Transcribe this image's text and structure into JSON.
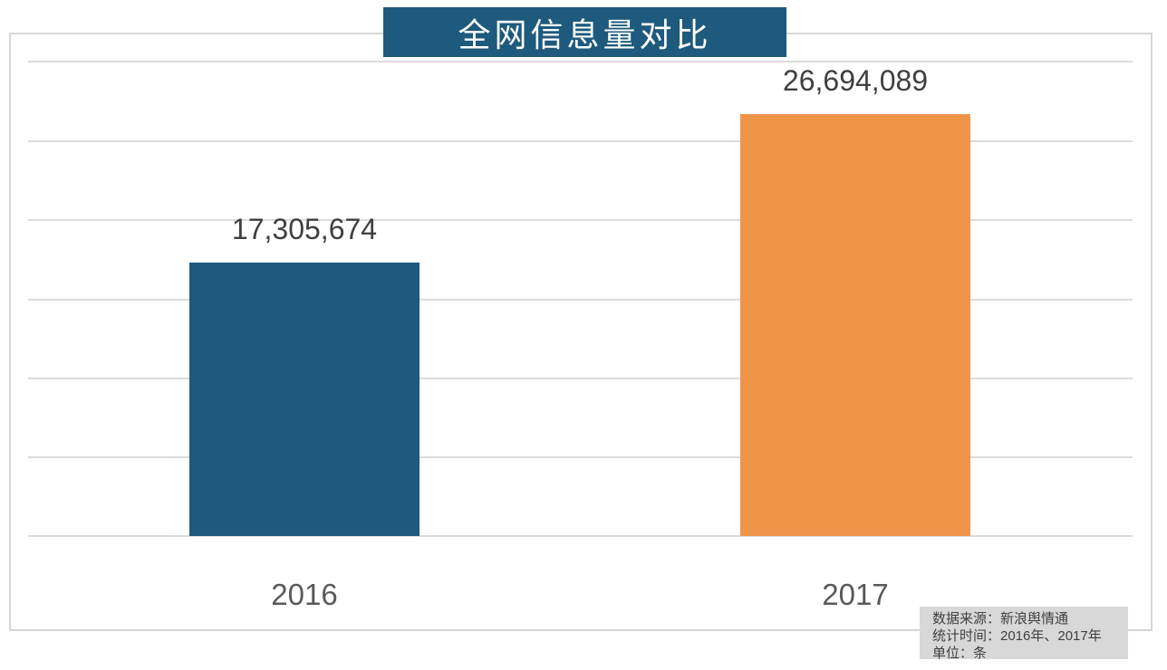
{
  "chart": {
    "title": "全网信息量对比",
    "footer": {
      "source": "数据来源：新浪舆情通",
      "period": "统计时间：2016年、2017年",
      "unit": "单位：条"
    }
  },
  "chart_data": {
    "type": "bar",
    "title": "全网信息量对比",
    "categories": [
      "2016",
      "2017"
    ],
    "values": [
      17305674,
      26694089
    ],
    "value_labels": [
      "17,305,674",
      "26,694,089"
    ],
    "colors": [
      "#1d5a7d",
      "#f0944a"
    ],
    "xlabel": "",
    "ylabel": "",
    "ylim": [
      0,
      30000000
    ],
    "gridline_interval": 5000000,
    "grid": true,
    "legend": false,
    "annotations": [
      "数据来源：新浪舆情通",
      "统计时间：2016年、2017年",
      "单位：条"
    ]
  }
}
